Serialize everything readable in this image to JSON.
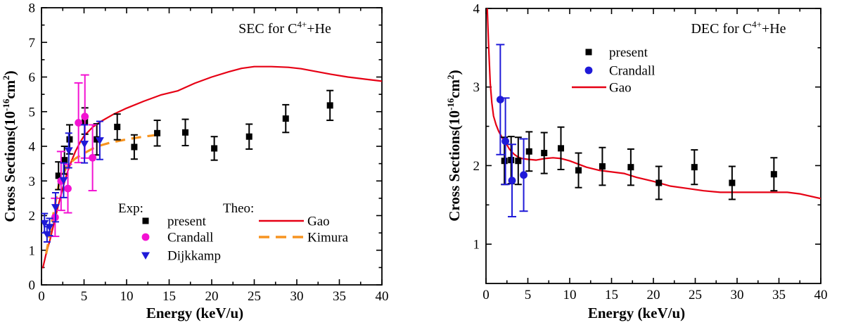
{
  "figure": {
    "background": "#ffffff",
    "colors": {
      "red": "#e60014",
      "magenta": "#f312d2",
      "blue": "#1f1ad8",
      "orange": "#f79420",
      "black": "#000000"
    }
  },
  "chart_data": [
    {
      "id": "sec",
      "type": "scatter",
      "title_parts": [
        {
          "t": "SEC for C"
        },
        {
          "t": "4+",
          "sup": true
        },
        {
          "t": "+He"
        }
      ],
      "xlabel": "Energy (keV/u)",
      "ylabel_parts": [
        {
          "t": "Cross Sections(10"
        },
        {
          "t": "-16",
          "sup": true
        },
        {
          "t": "cm"
        },
        {
          "t": "2",
          "sup": true
        },
        {
          "t": ")"
        }
      ],
      "xlim": [
        0,
        40
      ],
      "ylim": [
        0,
        8
      ],
      "xticks": [
        0,
        5,
        10,
        15,
        20,
        25,
        30,
        35,
        40
      ],
      "yticks": [
        0,
        1,
        2,
        3,
        4,
        5,
        6,
        7,
        8
      ],
      "x_minor_step": 2.5,
      "y_minor_step": 0.5,
      "grid": false,
      "legend": {
        "exp_header": "Exp:",
        "theo_header": "Theo:",
        "exp_items": [
          {
            "label": "present",
            "marker": "square",
            "color": "#000000"
          },
          {
            "label": "Crandall",
            "marker": "circle",
            "color": "#f312d2"
          },
          {
            "label": "Dijkkamp",
            "marker": "triangle-down",
            "color": "#1f1ad8"
          }
        ],
        "theo_items": [
          {
            "label": "Gao",
            "line": "solid",
            "color": "#e60014"
          },
          {
            "label": "Kimura",
            "line": "dashed",
            "color": "#f79420"
          }
        ]
      },
      "series": [
        {
          "name": "Gao",
          "kind": "line",
          "style": "solid",
          "color": "#e60014",
          "points": [
            [
              0.15,
              0.48
            ],
            [
              0.5,
              0.85
            ],
            [
              1,
              1.3
            ],
            [
              1.5,
              1.82
            ],
            [
              2,
              2.32
            ],
            [
              2.5,
              2.8
            ],
            [
              3,
              3.22
            ],
            [
              3.5,
              3.56
            ],
            [
              4,
              3.86
            ],
            [
              4.5,
              4.1
            ],
            [
              5,
              4.3
            ],
            [
              6,
              4.55
            ],
            [
              7,
              4.72
            ],
            [
              8.5,
              4.93
            ],
            [
              10,
              5.1
            ],
            [
              12,
              5.3
            ],
            [
              14,
              5.48
            ],
            [
              16,
              5.6
            ],
            [
              18,
              5.82
            ],
            [
              20,
              6.0
            ],
            [
              22,
              6.15
            ],
            [
              23.5,
              6.25
            ],
            [
              25,
              6.3
            ],
            [
              27,
              6.3
            ],
            [
              29,
              6.28
            ],
            [
              30.5,
              6.24
            ],
            [
              32,
              6.17
            ],
            [
              34,
              6.08
            ],
            [
              36,
              6.0
            ],
            [
              38,
              5.94
            ],
            [
              40,
              5.88
            ]
          ]
        },
        {
          "name": "Kimura",
          "kind": "line",
          "style": "dashed",
          "color": "#f79420",
          "points": [
            [
              0.55,
              0.9
            ],
            [
              1,
              1.5
            ],
            [
              1.5,
              2.2
            ],
            [
              2,
              2.85
            ],
            [
              2.5,
              3.2
            ],
            [
              3,
              3.42
            ],
            [
              3.5,
              3.55
            ],
            [
              4,
              3.65
            ],
            [
              5,
              3.8
            ],
            [
              6,
              3.93
            ],
            [
              7,
              4.03
            ],
            [
              8,
              4.1
            ],
            [
              10,
              4.2
            ],
            [
              12,
              4.28
            ],
            [
              13.9,
              4.34
            ]
          ]
        },
        {
          "name": "present",
          "kind": "scatter",
          "marker": "square",
          "color": "#000000",
          "points": [
            [
              2.0,
              3.15,
              0.4
            ],
            [
              2.7,
              3.6,
              0.4
            ],
            [
              3.3,
              4.2,
              0.42
            ],
            [
              5.1,
              4.73,
              0.38
            ],
            [
              6.5,
              4.2,
              0.45
            ],
            [
              8.9,
              4.56,
              0.37
            ],
            [
              10.9,
              3.98,
              0.35
            ],
            [
              13.6,
              4.38,
              0.37
            ],
            [
              16.9,
              4.4,
              0.38
            ],
            [
              20.3,
              3.94,
              0.34
            ],
            [
              24.4,
              4.28,
              0.36
            ],
            [
              28.7,
              4.8,
              0.4
            ],
            [
              33.9,
              5.18,
              0.43
            ]
          ]
        },
        {
          "name": "Crandall",
          "kind": "scatter",
          "marker": "circle",
          "color": "#f312d2",
          "points": [
            [
              1.6,
              1.95,
              0.55
            ],
            [
              2.3,
              3.0,
              0.85
            ],
            [
              3.1,
              2.78,
              0.7
            ],
            [
              4.35,
              4.68,
              1.15
            ],
            [
              5.1,
              4.86,
              1.2
            ],
            [
              6.0,
              3.67,
              0.95
            ]
          ]
        },
        {
          "name": "Dijkkamp",
          "kind": "scatter",
          "marker": "triangle-down",
          "color": "#1f1ad8",
          "points": [
            [
              0.35,
              1.78,
              0.28
            ],
            [
              0.65,
              1.46,
              0.22
            ],
            [
              0.95,
              1.67,
              0.25
            ],
            [
              1.65,
              2.24,
              0.42
            ],
            [
              2.6,
              3.02,
              0.5
            ],
            [
              3.2,
              3.88,
              0.5
            ],
            [
              5.05,
              4.07,
              0.55
            ],
            [
              6.85,
              4.17,
              0.55
            ]
          ]
        }
      ]
    },
    {
      "id": "dec",
      "type": "scatter",
      "title_parts": [
        {
          "t": "DEC for C"
        },
        {
          "t": "4+",
          "sup": true
        },
        {
          "t": "+He"
        }
      ],
      "xlabel": "Energy (keV/u)",
      "ylabel_parts": [
        {
          "t": "Cross Sections(10"
        },
        {
          "t": "-16",
          "sup": true
        },
        {
          "t": "cm"
        },
        {
          "t": "2",
          "sup": true
        },
        {
          "t": ")"
        }
      ],
      "xlim": [
        0,
        40
      ],
      "ylim": [
        0.5,
        4
      ],
      "xticks": [
        0,
        5,
        10,
        15,
        20,
        25,
        30,
        35,
        40
      ],
      "yticks": [
        1,
        2,
        3,
        4
      ],
      "x_minor_step": 2.5,
      "y_minor_step": 0.5,
      "grid": false,
      "legend": {
        "exp_items": [
          {
            "label": "present",
            "marker": "square",
            "color": "#000000"
          },
          {
            "label": "Crandall",
            "marker": "circle",
            "color": "#1f1ad8"
          }
        ],
        "theo_items": [
          {
            "label": "Gao",
            "line": "solid",
            "color": "#e60014"
          }
        ]
      },
      "series": [
        {
          "name": "Gao",
          "kind": "line",
          "style": "solid",
          "color": "#e60014",
          "points": [
            [
              0.15,
              4.0
            ],
            [
              0.3,
              3.55
            ],
            [
              0.5,
              3.05
            ],
            [
              0.7,
              2.8
            ],
            [
              0.9,
              2.63
            ],
            [
              1.2,
              2.52
            ],
            [
              1.5,
              2.44
            ],
            [
              1.9,
              2.36
            ],
            [
              2.3,
              2.3
            ],
            [
              2.8,
              2.21
            ],
            [
              3.3,
              2.15
            ],
            [
              3.8,
              2.11
            ],
            [
              4.3,
              2.09
            ],
            [
              5,
              2.08
            ],
            [
              6,
              2.07
            ],
            [
              7,
              2.09
            ],
            [
              8,
              2.1
            ],
            [
              9,
              2.09
            ],
            [
              10,
              2.06
            ],
            [
              11,
              2.02
            ],
            [
              12,
              1.98
            ],
            [
              13.5,
              1.94
            ],
            [
              15,
              1.92
            ],
            [
              16.5,
              1.9
            ],
            [
              18,
              1.85
            ],
            [
              20,
              1.8
            ],
            [
              22,
              1.74
            ],
            [
              24,
              1.71
            ],
            [
              26,
              1.68
            ],
            [
              28,
              1.66
            ],
            [
              30,
              1.66
            ],
            [
              32,
              1.66
            ],
            [
              34,
              1.66
            ],
            [
              36,
              1.66
            ],
            [
              37.5,
              1.64
            ],
            [
              40,
              1.58
            ]
          ]
        },
        {
          "name": "present",
          "kind": "scatter",
          "marker": "square",
          "color": "#000000",
          "points": [
            [
              2.2,
              2.06,
              0.3
            ],
            [
              3.0,
              2.07,
              0.3
            ],
            [
              3.85,
              2.06,
              0.3
            ],
            [
              5.15,
              2.18,
              0.25
            ],
            [
              6.95,
              2.16,
              0.26
            ],
            [
              8.95,
              2.22,
              0.27
            ],
            [
              11.05,
              1.94,
              0.22
            ],
            [
              13.9,
              1.99,
              0.24
            ],
            [
              17.3,
              1.98,
              0.23
            ],
            [
              20.65,
              1.78,
              0.21
            ],
            [
              24.9,
              1.98,
              0.22
            ],
            [
              29.4,
              1.78,
              0.21
            ],
            [
              34.4,
              1.89,
              0.21
            ]
          ]
        },
        {
          "name": "Crandall",
          "kind": "scatter",
          "marker": "circle",
          "color": "#1f1ad8",
          "points": [
            [
              1.71,
              2.84,
              0.7
            ],
            [
              2.32,
              2.31,
              0.55
            ],
            [
              3.11,
              1.81,
              0.46
            ],
            [
              4.5,
              1.88,
              0.46
            ]
          ]
        }
      ]
    }
  ]
}
